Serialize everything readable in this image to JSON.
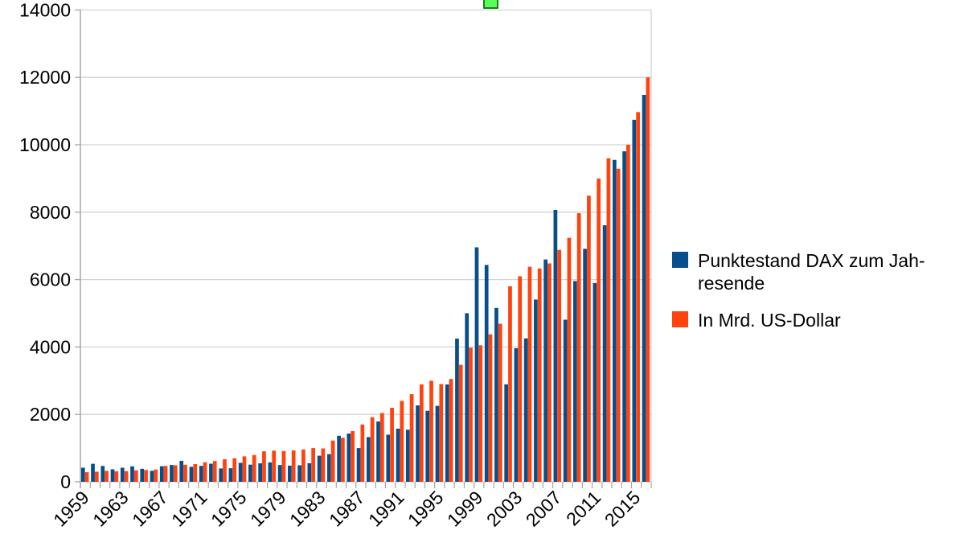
{
  "chart_data": {
    "type": "bar",
    "title": "",
    "xlabel": "",
    "ylabel": "",
    "ylim": [
      0,
      14000
    ],
    "y_ticks": [
      0,
      2000,
      4000,
      6000,
      8000,
      10000,
      12000,
      14000
    ],
    "grid": "horizontal",
    "legend_position": "right",
    "categories": [
      1959,
      1960,
      1961,
      1962,
      1963,
      1964,
      1965,
      1966,
      1967,
      1968,
      1969,
      1970,
      1971,
      1972,
      1973,
      1974,
      1975,
      1976,
      1977,
      1978,
      1979,
      1980,
      1981,
      1982,
      1983,
      1984,
      1985,
      1986,
      1987,
      1988,
      1989,
      1990,
      1991,
      1992,
      1993,
      1994,
      1995,
      1996,
      1997,
      1998,
      1999,
      2000,
      2001,
      2002,
      2003,
      2004,
      2005,
      2006,
      2007,
      2008,
      2009,
      2010,
      2011,
      2012,
      2013,
      2014,
      2015,
      2016
    ],
    "x_tick_labels": [
      "1959",
      "1963",
      "1967",
      "1971",
      "1975",
      "1979",
      "1983",
      "1987",
      "1991",
      "1995",
      "1999",
      "2003",
      "2007",
      "2011",
      "2015"
    ],
    "series": [
      {
        "name": "Punktestand DAX zum Jahresende",
        "label_lines": [
          "Punktestand DAX zum Jah-",
          "resende"
        ],
        "color": "#084e8a",
        "values": [
          418,
          534,
          470,
          371,
          417,
          459,
          386,
          326,
          462,
          499,
          622,
          444,
          473,
          536,
          396,
          402,
          563,
          509,
          549,
          575,
          498,
          481,
          490,
          553,
          774,
          821,
          1366,
          1432,
          1000,
          1328,
          1790,
          1398,
          1578,
          1545,
          2267,
          2107,
          2254,
          2889,
          4250,
          5002,
          6958,
          6434,
          5160,
          2893,
          3965,
          4256,
          5408,
          6597,
          8067,
          4810,
          5957,
          6914,
          5898,
          7612,
          9552,
          9806,
          10743,
          11481
        ]
      },
      {
        "name": "In Mrd. US-Dollar",
        "label_lines": [
          "In Mrd. US-Dollar"
        ],
        "color": "#ff420e",
        "values": [
          285,
          300,
          325,
          310,
          315,
          340,
          350,
          365,
          470,
          490,
          505,
          525,
          580,
          615,
          670,
          700,
          755,
          795,
          905,
          925,
          915,
          930,
          960,
          1000,
          990,
          1225,
          1305,
          1505,
          1700,
          1915,
          2040,
          2195,
          2400,
          2600,
          2890,
          3000,
          2900,
          3050,
          3470,
          3980,
          4050,
          4375,
          4690,
          5800,
          6100,
          6380,
          6330,
          6480,
          6880,
          7240,
          7970,
          8490,
          9000,
          9600,
          9290,
          10000,
          10970,
          12000
        ]
      }
    ]
  },
  "ui": {
    "selection_handle_color": "#56ff56",
    "gridline_color": "#d3d3d3",
    "axis_color": "#a6a6a6",
    "text_color": "#000000",
    "background_color": "#ffffff"
  }
}
